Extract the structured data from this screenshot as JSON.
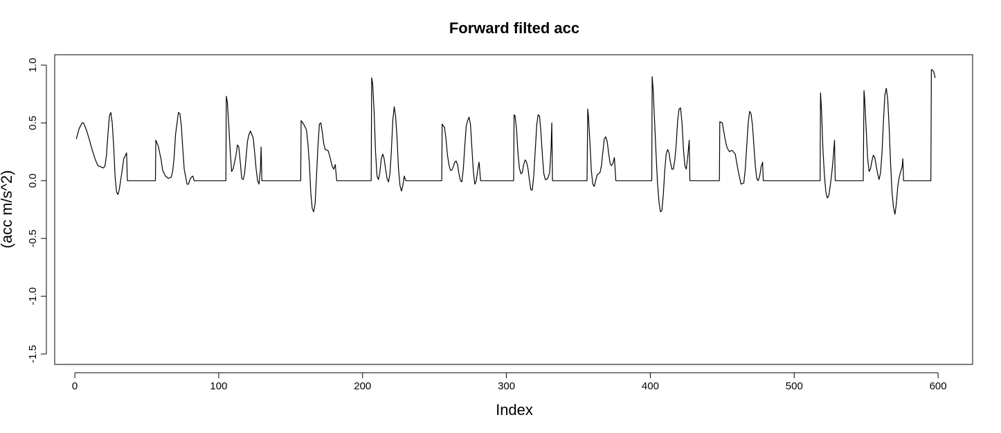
{
  "chart_data": {
    "type": "line",
    "title": "Forward filted acc",
    "xlabel": "Index",
    "ylabel": "(acc m/s^2)",
    "xlim": [
      -14,
      624
    ],
    "ylim": [
      -1.59,
      1.09
    ],
    "xticks": [
      0,
      100,
      200,
      300,
      400,
      500,
      600
    ],
    "yticks": [
      -1.5,
      -1.0,
      -0.5,
      0.0,
      0.5,
      1.0
    ],
    "xtick_labels": [
      "0",
      "100",
      "200",
      "300",
      "400",
      "500",
      "600"
    ],
    "ytick_labels": [
      "-1.5",
      "-1.0",
      "-0.5",
      "0.0",
      "0.5",
      "1.0"
    ],
    "grid": false,
    "line_color": "#000000",
    "series": [
      {
        "points": [
          [
            1,
            0.36
          ],
          [
            3,
            0.45
          ],
          [
            5,
            0.5
          ],
          [
            6,
            0.5
          ],
          [
            8,
            0.44
          ],
          [
            10,
            0.36
          ],
          [
            12,
            0.27
          ],
          [
            14,
            0.19
          ],
          [
            16,
            0.13
          ],
          [
            18,
            0.12
          ],
          [
            20,
            0.11
          ],
          [
            21,
            0.13
          ],
          [
            22,
            0.22
          ],
          [
            23,
            0.4
          ],
          [
            24,
            0.56
          ],
          [
            25,
            0.59
          ],
          [
            26,
            0.5
          ],
          [
            27,
            0.3
          ],
          [
            28,
            0.03
          ],
          [
            29,
            -0.1
          ],
          [
            30,
            -0.12
          ],
          [
            31,
            -0.07
          ],
          [
            33,
            0.1
          ],
          [
            34,
            0.19
          ],
          [
            36,
            0.24
          ],
          [
            36.5,
            0.0
          ],
          [
            56,
            0.0
          ],
          [
            56.3,
            0.35
          ],
          [
            58,
            0.3
          ],
          [
            60,
            0.18
          ],
          [
            61,
            0.09
          ],
          [
            63,
            0.04
          ],
          [
            65,
            0.02
          ],
          [
            67,
            0.03
          ],
          [
            68,
            0.08
          ],
          [
            69,
            0.2
          ],
          [
            70,
            0.4
          ],
          [
            72,
            0.59
          ],
          [
            73,
            0.58
          ],
          [
            74,
            0.48
          ],
          [
            75,
            0.28
          ],
          [
            76,
            0.1
          ],
          [
            78,
            -0.03
          ],
          [
            79,
            -0.03
          ],
          [
            80,
            0.01
          ],
          [
            81,
            0.03
          ],
          [
            82,
            0.04
          ],
          [
            83,
            0.0
          ],
          [
            105,
            0.0
          ],
          [
            105.3,
            0.73
          ],
          [
            106,
            0.68
          ],
          [
            107,
            0.48
          ],
          [
            108,
            0.25
          ],
          [
            109,
            0.08
          ],
          [
            110,
            0.1
          ],
          [
            112,
            0.22
          ],
          [
            113,
            0.31
          ],
          [
            114,
            0.29
          ],
          [
            115,
            0.16
          ],
          [
            116,
            0.02
          ],
          [
            117,
            0.01
          ],
          [
            118,
            0.06
          ],
          [
            119,
            0.2
          ],
          [
            120,
            0.34
          ],
          [
            121,
            0.4
          ],
          [
            122,
            0.43
          ],
          [
            124,
            0.37
          ],
          [
            125,
            0.24
          ],
          [
            126,
            0.1
          ],
          [
            127,
            0.0
          ],
          [
            128,
            -0.03
          ],
          [
            129,
            0.1
          ],
          [
            129.5,
            0.29
          ],
          [
            130,
            0.0
          ],
          [
            157,
            0.0
          ],
          [
            157.3,
            0.52
          ],
          [
            159,
            0.49
          ],
          [
            161,
            0.44
          ],
          [
            162,
            0.32
          ],
          [
            163,
            0.15
          ],
          [
            164,
            -0.1
          ],
          [
            165,
            -0.24
          ],
          [
            166,
            -0.27
          ],
          [
            167,
            -0.2
          ],
          [
            168,
            0.05
          ],
          [
            169,
            0.3
          ],
          [
            170,
            0.49
          ],
          [
            171,
            0.5
          ],
          [
            172,
            0.42
          ],
          [
            173,
            0.32
          ],
          [
            174,
            0.27
          ],
          [
            176,
            0.26
          ],
          [
            177,
            0.22
          ],
          [
            178,
            0.17
          ],
          [
            179,
            0.12
          ],
          [
            180,
            0.1
          ],
          [
            181,
            0.14
          ],
          [
            182,
            0.0
          ],
          [
            206,
            0.0
          ],
          [
            206.3,
            0.89
          ],
          [
            207,
            0.84
          ],
          [
            208,
            0.6
          ],
          [
            209,
            0.25
          ],
          [
            210,
            0.04
          ],
          [
            211,
            0.01
          ],
          [
            212,
            0.07
          ],
          [
            213,
            0.19
          ],
          [
            214,
            0.23
          ],
          [
            215,
            0.19
          ],
          [
            216,
            0.1
          ],
          [
            217,
            0.02
          ],
          [
            218,
            -0.01
          ],
          [
            219,
            0.06
          ],
          [
            220,
            0.25
          ],
          [
            221,
            0.52
          ],
          [
            222,
            0.64
          ],
          [
            223,
            0.55
          ],
          [
            224,
            0.35
          ],
          [
            225,
            0.1
          ],
          [
            226,
            -0.04
          ],
          [
            227,
            -0.09
          ],
          [
            228,
            -0.04
          ],
          [
            229,
            0.04
          ],
          [
            230,
            0.0
          ],
          [
            255,
            0.0
          ],
          [
            255.3,
            0.49
          ],
          [
            257,
            0.46
          ],
          [
            258,
            0.36
          ],
          [
            259,
            0.22
          ],
          [
            260,
            0.14
          ],
          [
            261,
            0.09
          ],
          [
            262,
            0.09
          ],
          [
            263,
            0.12
          ],
          [
            264,
            0.16
          ],
          [
            265,
            0.17
          ],
          [
            266,
            0.14
          ],
          [
            267,
            0.06
          ],
          [
            268,
            0.0
          ],
          [
            269,
            -0.01
          ],
          [
            270,
            0.1
          ],
          [
            271,
            0.29
          ],
          [
            272,
            0.47
          ],
          [
            273,
            0.52
          ],
          [
            274,
            0.55
          ],
          [
            275,
            0.49
          ],
          [
            276,
            0.28
          ],
          [
            277,
            0.08
          ],
          [
            278,
            -0.03
          ],
          [
            279,
            0.0
          ],
          [
            280,
            0.09
          ],
          [
            281,
            0.16
          ],
          [
            282,
            0.0
          ],
          [
            305,
            0.0
          ],
          [
            305.3,
            0.57
          ],
          [
            306,
            0.56
          ],
          [
            307,
            0.44
          ],
          [
            308,
            0.24
          ],
          [
            309,
            0.11
          ],
          [
            310,
            0.06
          ],
          [
            311,
            0.07
          ],
          [
            312,
            0.14
          ],
          [
            313,
            0.18
          ],
          [
            314,
            0.16
          ],
          [
            315,
            0.1
          ],
          [
            316,
            0.0
          ],
          [
            317,
            -0.08
          ],
          [
            318,
            -0.08
          ],
          [
            319,
            0.05
          ],
          [
            320,
            0.26
          ],
          [
            321,
            0.48
          ],
          [
            322,
            0.57
          ],
          [
            323,
            0.56
          ],
          [
            324,
            0.41
          ],
          [
            325,
            0.21
          ],
          [
            326,
            0.06
          ],
          [
            327,
            0.01
          ],
          [
            328,
            0.01
          ],
          [
            329,
            0.03
          ],
          [
            330,
            0.07
          ],
          [
            331,
            0.27
          ],
          [
            331.5,
            0.5
          ],
          [
            332,
            0.0
          ],
          [
            356,
            0.0
          ],
          [
            356.5,
            0.62
          ],
          [
            357,
            0.55
          ],
          [
            358,
            0.33
          ],
          [
            359,
            0.09
          ],
          [
            360,
            -0.03
          ],
          [
            361,
            -0.05
          ],
          [
            362,
            0.0
          ],
          [
            363,
            0.05
          ],
          [
            364,
            0.06
          ],
          [
            365,
            0.07
          ],
          [
            366,
            0.13
          ],
          [
            367,
            0.25
          ],
          [
            368,
            0.36
          ],
          [
            369,
            0.38
          ],
          [
            370,
            0.34
          ],
          [
            371,
            0.24
          ],
          [
            372,
            0.15
          ],
          [
            373,
            0.13
          ],
          [
            374,
            0.15
          ],
          [
            375,
            0.2
          ],
          [
            376,
            0.0
          ],
          [
            401,
            0.0
          ],
          [
            401.3,
            0.9
          ],
          [
            402,
            0.78
          ],
          [
            403,
            0.5
          ],
          [
            404,
            0.22
          ],
          [
            405,
            -0.02
          ],
          [
            406,
            -0.18
          ],
          [
            407,
            -0.27
          ],
          [
            408,
            -0.26
          ],
          [
            409,
            -0.12
          ],
          [
            410,
            0.08
          ],
          [
            411,
            0.23
          ],
          [
            412,
            0.27
          ],
          [
            413,
            0.24
          ],
          [
            414,
            0.16
          ],
          [
            415,
            0.1
          ],
          [
            416,
            0.1
          ],
          [
            417,
            0.18
          ],
          [
            418,
            0.32
          ],
          [
            419,
            0.52
          ],
          [
            420,
            0.62
          ],
          [
            421,
            0.63
          ],
          [
            422,
            0.5
          ],
          [
            423,
            0.28
          ],
          [
            424,
            0.13
          ],
          [
            425,
            0.1
          ],
          [
            426,
            0.21
          ],
          [
            427,
            0.35
          ],
          [
            427.5,
            0.0
          ],
          [
            448,
            0.0
          ],
          [
            448.3,
            0.51
          ],
          [
            450,
            0.5
          ],
          [
            451,
            0.43
          ],
          [
            452,
            0.36
          ],
          [
            453,
            0.3
          ],
          [
            454,
            0.27
          ],
          [
            455,
            0.25
          ],
          [
            456,
            0.26
          ],
          [
            457,
            0.26
          ],
          [
            459,
            0.23
          ],
          [
            460,
            0.16
          ],
          [
            461,
            0.09
          ],
          [
            462,
            0.03
          ],
          [
            463,
            -0.03
          ],
          [
            465,
            -0.02
          ],
          [
            466,
            0.1
          ],
          [
            467,
            0.3
          ],
          [
            468,
            0.5
          ],
          [
            469,
            0.6
          ],
          [
            470,
            0.58
          ],
          [
            471,
            0.48
          ],
          [
            472,
            0.3
          ],
          [
            473,
            0.12
          ],
          [
            474,
            0.02
          ],
          [
            475,
            0.0
          ],
          [
            476,
            0.04
          ],
          [
            477,
            0.12
          ],
          [
            478,
            0.16
          ],
          [
            478.5,
            0.0
          ],
          [
            518,
            0.0
          ],
          [
            518.3,
            0.76
          ],
          [
            519,
            0.6
          ],
          [
            520,
            0.27
          ],
          [
            521,
            0.05
          ],
          [
            522,
            -0.1
          ],
          [
            523,
            -0.15
          ],
          [
            524,
            -0.13
          ],
          [
            525,
            -0.05
          ],
          [
            526,
            0.05
          ],
          [
            527,
            0.18
          ],
          [
            528,
            0.35
          ],
          [
            528.5,
            0.0
          ],
          [
            548,
            0.0
          ],
          [
            548.5,
            0.78
          ],
          [
            549,
            0.7
          ],
          [
            550,
            0.45
          ],
          [
            551,
            0.2
          ],
          [
            552,
            0.08
          ],
          [
            553,
            0.1
          ],
          [
            554,
            0.17
          ],
          [
            555,
            0.22
          ],
          [
            556,
            0.2
          ],
          [
            557,
            0.13
          ],
          [
            558,
            0.06
          ],
          [
            559,
            0.01
          ],
          [
            560,
            0.07
          ],
          [
            561,
            0.24
          ],
          [
            562,
            0.5
          ],
          [
            563,
            0.74
          ],
          [
            564,
            0.8
          ],
          [
            565,
            0.7
          ],
          [
            566,
            0.45
          ],
          [
            567,
            0.15
          ],
          [
            568,
            -0.1
          ],
          [
            569,
            -0.23
          ],
          [
            570,
            -0.29
          ],
          [
            571,
            -0.2
          ],
          [
            572,
            -0.05
          ],
          [
            573,
            0.03
          ],
          [
            574,
            0.08
          ],
          [
            575,
            0.12
          ],
          [
            575.5,
            0.19
          ],
          [
            576,
            0.0
          ],
          [
            595,
            0.0
          ],
          [
            595.3,
            0.96
          ],
          [
            596,
            0.96
          ],
          [
            597,
            0.94
          ],
          [
            598,
            0.89
          ]
        ]
      }
    ]
  }
}
